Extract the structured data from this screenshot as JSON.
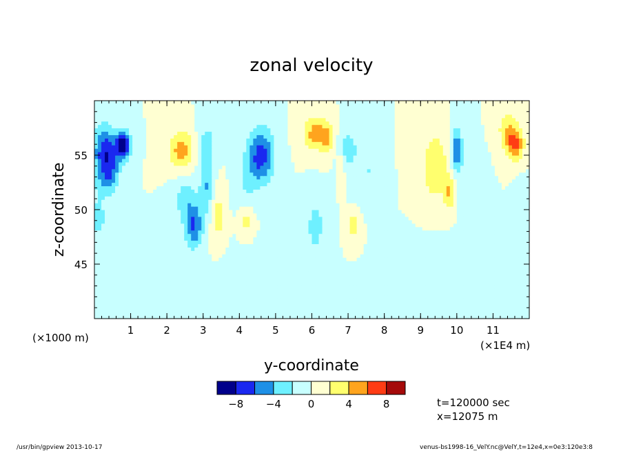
{
  "chart_data": {
    "type": "heatmap",
    "title": "zonal velocity",
    "xlabel": "y-coordinate",
    "ylabel": "z-coordinate",
    "x_range": [
      0,
      120000
    ],
    "y_range": [
      40000,
      60000
    ],
    "x_ticks": [
      "1",
      "2",
      "3",
      "4",
      "5",
      "6",
      "7",
      "8",
      "9",
      "10",
      "11"
    ],
    "x_tick_values": [
      10000,
      20000,
      30000,
      40000,
      50000,
      60000,
      70000,
      80000,
      90000,
      100000,
      110000
    ],
    "y_ticks": [
      "45",
      "50",
      "55"
    ],
    "y_tick_values": [
      45000,
      50000,
      55000
    ],
    "y_scale_label": "(×1000 m)",
    "x_scale_label": "(×1E4 m)",
    "colorbar": {
      "levels": [
        -10,
        -8,
        -6,
        -4,
        -2,
        0,
        2,
        4,
        6,
        8,
        10
      ],
      "tick_labels": [
        "−8",
        "−4",
        "0",
        "4",
        "8"
      ],
      "tick_values": [
        -8,
        -4,
        0,
        4,
        8
      ],
      "colors": [
        "#00008b",
        "#1a28f0",
        "#1e90e6",
        "#6ef0ff",
        "#c8ffff",
        "#ffffd2",
        "#ffff6e",
        "#ffa41e",
        "#ff3c14",
        "#a50a0a"
      ]
    },
    "info": [
      "t=120000 sec",
      "x=12075 m"
    ],
    "background": "#fffdd8",
    "features": [
      {
        "y": 8000,
        "z": 56000,
        "u": -9,
        "sy": 2000,
        "sz": 1300
      },
      {
        "y": 3500,
        "z": 55800,
        "u": -5,
        "sy": 3000,
        "sz": 2000
      },
      {
        "y": 4500,
        "z": 53500,
        "u": -5,
        "sy": 2500,
        "sz": 2000
      },
      {
        "y": 1500,
        "z": 54000,
        "u": -3,
        "sy": 2500,
        "sz": 3500
      },
      {
        "y": 1000,
        "z": 49000,
        "u": -3,
        "sy": 2000,
        "sz": 1500
      },
      {
        "y": 24000,
        "z": 55500,
        "u": 5,
        "sy": 3500,
        "sz": 1800
      },
      {
        "y": 31000,
        "z": 56000,
        "u": -3,
        "sy": 2500,
        "sz": 2000
      },
      {
        "y": 25000,
        "z": 51000,
        "u": -3,
        "sy": 3000,
        "sz": 2000
      },
      {
        "y": 27500,
        "z": 48500,
        "u": -6,
        "sy": 2500,
        "sz": 2000
      },
      {
        "y": 31000,
        "z": 52000,
        "u": -4,
        "sy": 2000,
        "sz": 2500
      },
      {
        "y": 34000,
        "z": 49500,
        "u": 3,
        "sy": 2000,
        "sz": 2500
      },
      {
        "y": 46000,
        "z": 55000,
        "u": -7,
        "sy": 3500,
        "sz": 2500
      },
      {
        "y": 42000,
        "z": 52500,
        "u": -2,
        "sy": 3000,
        "sz": 3000
      },
      {
        "y": 42000,
        "z": 49000,
        "u": 3,
        "sy": 2000,
        "sz": 1500
      },
      {
        "y": 61000,
        "z": 57000,
        "u": 5,
        "sy": 3500,
        "sz": 1500
      },
      {
        "y": 64500,
        "z": 56500,
        "u": 3,
        "sy": 2000,
        "sz": 1500
      },
      {
        "y": 70000,
        "z": 55500,
        "u": -3,
        "sy": 3000,
        "sz": 2000
      },
      {
        "y": 61000,
        "z": 48500,
        "u": -3,
        "sy": 2500,
        "sz": 2500
      },
      {
        "y": 68000,
        "z": 54000,
        "u": 3,
        "sy": 1000,
        "sz": 1500
      },
      {
        "y": 71500,
        "z": 48500,
        "u": 4,
        "sy": 1500,
        "sz": 1000
      },
      {
        "y": 76000,
        "z": 53500,
        "u": -2,
        "sy": 2500,
        "sz": 2500
      },
      {
        "y": 94000,
        "z": 54000,
        "u": 4,
        "sy": 3500,
        "sz": 3000
      },
      {
        "y": 98000,
        "z": 51500,
        "u": 4,
        "sy": 1500,
        "sz": 1500
      },
      {
        "y": 100000,
        "z": 55500,
        "u": -6,
        "sy": 1500,
        "sz": 2000
      },
      {
        "y": 104000,
        "z": 52000,
        "u": -2,
        "sy": 3000,
        "sz": 3000
      },
      {
        "y": 116000,
        "z": 56000,
        "u": 6,
        "sy": 2500,
        "sz": 1500
      },
      {
        "y": 114000,
        "z": 57500,
        "u": 3,
        "sy": 3000,
        "sz": 1800
      },
      {
        "y": 118000,
        "z": 49500,
        "u": -2,
        "sy": 2000,
        "sz": 2500
      },
      {
        "y": 45000,
        "z": 43500,
        "u": -2,
        "sy": 8000,
        "sz": 2500
      },
      {
        "y": 12000,
        "z": 43000,
        "u": -2,
        "sy": 10000,
        "sz": 2500
      },
      {
        "y": 95000,
        "z": 43500,
        "u": -2,
        "sy": 8000,
        "sz": 2500
      }
    ]
  },
  "footer": {
    "left": "/usr/bin/gpview  2013-10-17",
    "right": "venus-bs1998-16_VelY.nc@VelY,t=12e4,x=0e3:120e3:8"
  }
}
